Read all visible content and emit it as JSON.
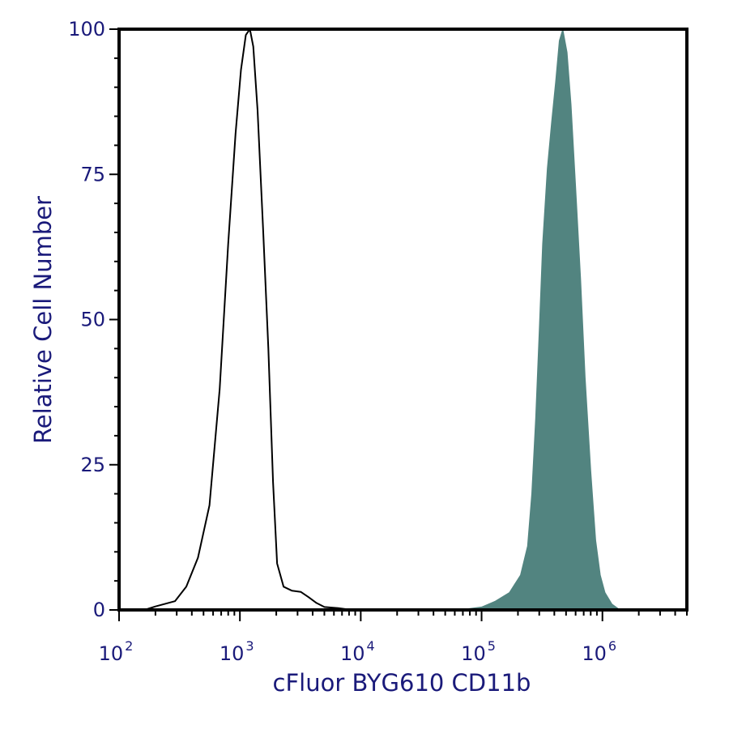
{
  "chart_data": {
    "type": "area",
    "xlabel": "cFluor BYG610 CD11b",
    "ylabel": "Relative Cell Number",
    "x_scale": "log",
    "xlim": [
      100,
      5000000
    ],
    "ylim": [
      0,
      100
    ],
    "x_ticks": [
      {
        "base": "10",
        "exp": "2",
        "value": 100
      },
      {
        "base": "10",
        "exp": "3",
        "value": 1000
      },
      {
        "base": "10",
        "exp": "4",
        "value": 10000
      },
      {
        "base": "10",
        "exp": "5",
        "value": 100000
      },
      {
        "base": "10",
        "exp": "6",
        "value": 1000000
      }
    ],
    "y_ticks": [
      "0",
      "25",
      "50",
      "75",
      "100"
    ],
    "grid": false,
    "colors": {
      "axis": "#000000",
      "tick_text": "#1a1a7a",
      "stained_fill": "#528480",
      "control_line": "#000000"
    },
    "series": [
      {
        "style": "outline",
        "color": "#000000",
        "points": [
          [
            162,
            0
          ],
          [
            200,
            0.6
          ],
          [
            290,
            1.5
          ],
          [
            360,
            4
          ],
          [
            450,
            9
          ],
          [
            560,
            18
          ],
          [
            680,
            38
          ],
          [
            800,
            63
          ],
          [
            920,
            82
          ],
          [
            1020,
            93
          ],
          [
            1120,
            99
          ],
          [
            1210,
            100
          ],
          [
            1290,
            97
          ],
          [
            1400,
            86
          ],
          [
            1560,
            65
          ],
          [
            1720,
            45
          ],
          [
            1880,
            22
          ],
          [
            2030,
            8
          ],
          [
            2300,
            4
          ],
          [
            2700,
            3.3
          ],
          [
            3200,
            3.1
          ],
          [
            3700,
            2.2
          ],
          [
            4300,
            1.2
          ],
          [
            5000,
            0.5
          ],
          [
            6500,
            0.3
          ],
          [
            8400,
            0
          ]
        ]
      },
      {
        "style": "filled",
        "color": "#528480",
        "points": [
          [
            65000,
            0
          ],
          [
            100000,
            0.5
          ],
          [
            130000,
            1.5
          ],
          [
            170000,
            3
          ],
          [
            210000,
            6
          ],
          [
            240000,
            11
          ],
          [
            260000,
            20
          ],
          [
            280000,
            33
          ],
          [
            300000,
            48
          ],
          [
            320000,
            63
          ],
          [
            350000,
            76
          ],
          [
            380000,
            84
          ],
          [
            410000,
            91
          ],
          [
            440000,
            98
          ],
          [
            470000,
            100
          ],
          [
            510000,
            96
          ],
          [
            550000,
            87
          ],
          [
            600000,
            73
          ],
          [
            660000,
            57
          ],
          [
            720000,
            40
          ],
          [
            800000,
            24
          ],
          [
            880000,
            12
          ],
          [
            960000,
            6
          ],
          [
            1050000,
            3
          ],
          [
            1200000,
            1
          ],
          [
            1400000,
            0
          ]
        ]
      }
    ]
  }
}
